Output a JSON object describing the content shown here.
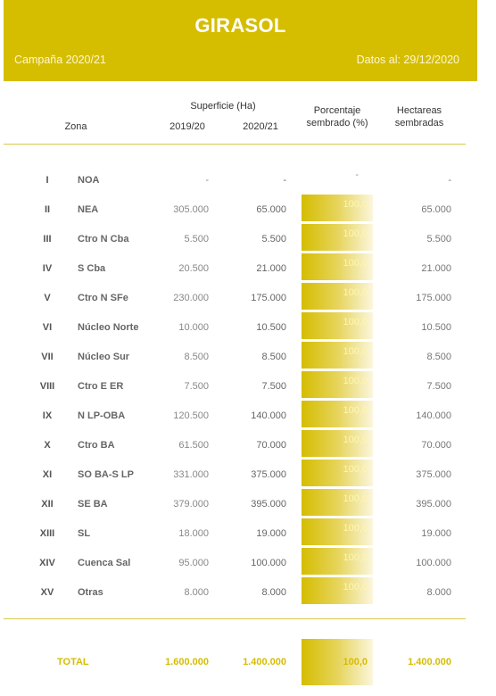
{
  "header": {
    "title": "GIRASOL",
    "campaign": "Campaña 2020/21",
    "date": "Datos al: 29/12/2020"
  },
  "columns": {
    "zone": "Zona",
    "surface": "Superficie (Ha)",
    "year1": "2019/20",
    "year2": "2020/21",
    "pct_line1": "Porcentaje",
    "pct_line2": "sembrado (%)",
    "ha_line1": "Hectareas",
    "ha_line2": "sembradas"
  },
  "rows": [
    {
      "roman": "I",
      "zone": "NOA",
      "y1": "-",
      "y2": "-",
      "pct": "-",
      "ha": "-"
    },
    {
      "roman": "II",
      "zone": "NEA",
      "y1": "305.000",
      "y2": "65.000",
      "pct": "100,0",
      "ha": "65.000"
    },
    {
      "roman": "III",
      "zone": "Ctro N Cba",
      "y1": "5.500",
      "y2": "5.500",
      "pct": "100,0",
      "ha": "5.500"
    },
    {
      "roman": "IV",
      "zone": "S Cba",
      "y1": "20.500",
      "y2": "21.000",
      "pct": "100,0",
      "ha": "21.000"
    },
    {
      "roman": "V",
      "zone": "Ctro N SFe",
      "y1": "230.000",
      "y2": "175.000",
      "pct": "100,0",
      "ha": "175.000"
    },
    {
      "roman": "VI",
      "zone": "Núcleo Norte",
      "y1": "10.000",
      "y2": "10.500",
      "pct": "100,0",
      "ha": "10.500"
    },
    {
      "roman": "VII",
      "zone": "Núcleo Sur",
      "y1": "8.500",
      "y2": "8.500",
      "pct": "100,0",
      "ha": "8.500"
    },
    {
      "roman": "VIII",
      "zone": "Ctro E ER",
      "y1": "7.500",
      "y2": "7.500",
      "pct": "100,0",
      "ha": "7.500"
    },
    {
      "roman": "IX",
      "zone": "N LP-OBA",
      "y1": "120.500",
      "y2": "140.000",
      "pct": "100,0",
      "ha": "140.000"
    },
    {
      "roman": "X",
      "zone": "Ctro BA",
      "y1": "61.500",
      "y2": "70.000",
      "pct": "100,0",
      "ha": "70.000"
    },
    {
      "roman": "XI",
      "zone": "SO BA-S LP",
      "y1": "331.000",
      "y2": "375.000",
      "pct": "100,0",
      "ha": "375.000"
    },
    {
      "roman": "XII",
      "zone": "SE BA",
      "y1": "379.000",
      "y2": "395.000",
      "pct": "100,0",
      "ha": "395.000"
    },
    {
      "roman": "XIII",
      "zone": "SL",
      "y1": "18.000",
      "y2": "19.000",
      "pct": "100,0",
      "ha": "19.000"
    },
    {
      "roman": "XIV",
      "zone": "Cuenca Sal",
      "y1": "95.000",
      "y2": "100.000",
      "pct": "100,0",
      "ha": "100.000"
    },
    {
      "roman": "XV",
      "zone": "Otras",
      "y1": "8.000",
      "y2": "8.000",
      "pct": "100,0",
      "ha": "8.000"
    }
  ],
  "total": {
    "label": "TOTAL",
    "y1": "1.600.000",
    "y2": "1.400.000",
    "pct": "100,0",
    "ha": "1.400.000"
  },
  "colors": {
    "accent": "#d5bd00"
  }
}
